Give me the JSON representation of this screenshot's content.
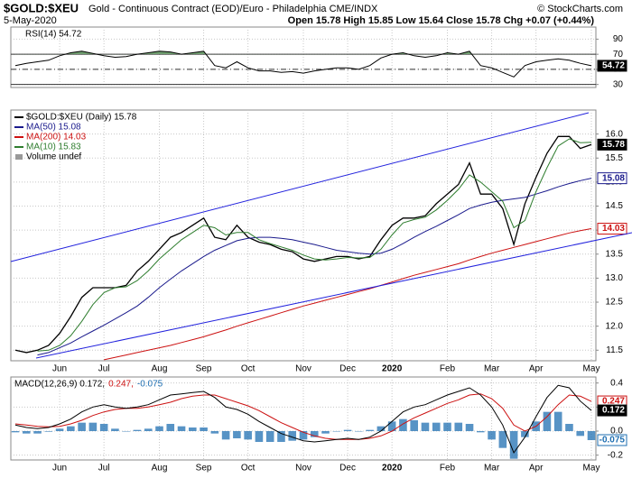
{
  "header": {
    "symbol": "$GOLD:$XEU",
    "description": "Gold - Continuous Contract (EOD)/Euro - Philadelphia CME/INDX",
    "copyright": "© StockCharts.com",
    "date": "5-May-2020",
    "quote": "Open 15.78 High 15.85 Low 15.64 Close 15.78 Chg +0.07 (+0.44%)"
  },
  "chart_data": [
    {
      "type": "line",
      "title": "RSI(14) 54.72",
      "ylim": [
        26,
        106
      ],
      "yticks": [
        30,
        50,
        70,
        90
      ],
      "levels": [
        70,
        50,
        30
      ],
      "grid": true,
      "overbought_fill": "#6f9e6f",
      "series": [
        {
          "name": "RSI(14)",
          "color": "#000000",
          "box": true,
          "values": [
            55,
            58,
            60,
            62,
            68,
            72,
            74,
            71,
            68,
            66,
            67,
            70,
            72,
            74,
            73,
            70,
            72,
            74,
            55,
            52,
            60,
            52,
            48,
            48,
            46,
            47,
            45,
            48,
            50,
            52,
            52,
            50,
            55,
            65,
            70,
            72,
            68,
            66,
            68,
            72,
            70,
            74,
            55,
            52,
            46,
            40,
            55,
            60,
            62,
            64,
            62,
            58,
            54.72
          ]
        }
      ]
    },
    {
      "type": "line",
      "categories": [
        null,
        null,
        null,
        null,
        "Jun",
        null,
        null,
        null,
        "Jul",
        null,
        null,
        null,
        null,
        "Aug",
        null,
        null,
        null,
        "Sep",
        null,
        null,
        null,
        "Oct",
        null,
        null,
        null,
        null,
        "Nov",
        null,
        null,
        null,
        "Dec",
        null,
        null,
        null,
        "2020",
        null,
        null,
        null,
        null,
        "Feb",
        null,
        null,
        null,
        "Mar",
        null,
        null,
        null,
        "Apr",
        null,
        null,
        null,
        null,
        "May"
      ],
      "ylim": [
        11.28,
        16.5
      ],
      "yticks": [
        11.5,
        {
          "value": 12,
          "label": "12.0"
        },
        12.5,
        {
          "value": 13,
          "label": "13.0"
        },
        13.5,
        {
          "value": 14,
          "label": "14.0"
        },
        14.5,
        {
          "value": 15,
          "label": "15.0"
        },
        15.5,
        {
          "value": 16,
          "label": "16.0"
        }
      ],
      "grid": true,
      "volume_label": "Volume undef",
      "series": [
        {
          "name": "$GOLD:$XEU (Daily) 15.78",
          "color": "#000000",
          "box": true,
          "values": [
            11.5,
            11.45,
            11.5,
            11.6,
            11.85,
            12.2,
            12.6,
            12.8,
            12.8,
            12.8,
            12.85,
            13.15,
            13.35,
            13.6,
            13.85,
            13.95,
            14.1,
            14.25,
            13.85,
            13.8,
            14.1,
            13.85,
            13.75,
            13.7,
            13.6,
            13.55,
            13.4,
            13.35,
            13.4,
            13.45,
            13.45,
            13.4,
            13.45,
            13.8,
            14.1,
            14.25,
            14.25,
            14.3,
            14.55,
            14.75,
            14.95,
            15.4,
            14.75,
            14.75,
            14.45,
            13.7,
            14.55,
            15.1,
            15.6,
            15.95,
            15.95,
            15.7,
            15.78
          ]
        },
        {
          "name": "MA(50) 15.08",
          "color": "#1a1a8c",
          "box": true,
          "values": [
            null,
            null,
            11.4,
            11.45,
            11.55,
            11.65,
            11.78,
            11.9,
            12.02,
            12.15,
            12.28,
            12.42,
            12.6,
            12.8,
            12.98,
            13.15,
            13.3,
            13.45,
            13.58,
            13.68,
            13.78,
            13.83,
            13.85,
            13.85,
            13.83,
            13.8,
            13.75,
            13.7,
            13.64,
            13.58,
            13.55,
            13.52,
            13.5,
            13.52,
            13.6,
            13.72,
            13.85,
            13.97,
            14.08,
            14.2,
            14.32,
            14.45,
            14.52,
            14.58,
            14.62,
            14.65,
            14.68,
            14.75,
            14.82,
            14.9,
            14.97,
            15.03,
            15.08
          ]
        },
        {
          "name": "MA(200) 14.03",
          "color": "#cc1111",
          "box": true,
          "values": [
            null,
            null,
            null,
            null,
            null,
            null,
            null,
            null,
            11.3,
            11.35,
            11.4,
            11.45,
            11.5,
            11.55,
            11.6,
            11.66,
            11.72,
            11.78,
            11.85,
            11.92,
            12.0,
            12.07,
            12.14,
            12.21,
            12.28,
            12.35,
            12.42,
            12.48,
            12.54,
            12.6,
            12.66,
            12.72,
            12.78,
            12.85,
            12.92,
            12.99,
            13.06,
            13.12,
            13.18,
            13.24,
            13.3,
            13.38,
            13.45,
            13.52,
            13.58,
            13.64,
            13.7,
            13.76,
            13.82,
            13.88,
            13.94,
            13.99,
            14.03
          ]
        },
        {
          "name": "MA(10) 15.83",
          "color": "#2e7d2e",
          "box": false,
          "values": [
            null,
            null,
            11.48,
            11.5,
            11.6,
            11.8,
            12.1,
            12.45,
            12.7,
            12.8,
            12.82,
            12.95,
            13.15,
            13.4,
            13.6,
            13.8,
            13.95,
            14.1,
            14.05,
            13.9,
            13.95,
            13.95,
            13.8,
            13.72,
            13.65,
            13.58,
            13.48,
            13.4,
            13.38,
            13.4,
            13.43,
            13.42,
            13.43,
            13.6,
            13.9,
            14.15,
            14.22,
            14.27,
            14.42,
            14.62,
            14.85,
            15.15,
            15.0,
            14.8,
            14.6,
            14.05,
            14.2,
            14.8,
            15.3,
            15.75,
            15.9,
            15.82,
            15.83
          ]
        }
      ]
    },
    {
      "type": "line",
      "title_parts": [
        {
          "text": "MACD(12,26,9) 0.172,",
          "color": "#000000"
        },
        {
          "text": "0.247,",
          "color": "#cc1111"
        },
        {
          "text": "-0.075",
          "color": "#1f6fb2"
        }
      ],
      "ylim": [
        -0.24,
        0.45
      ],
      "yticks": [
        -0.2,
        {
          "value": 0,
          "label": "0.0"
        },
        0.2,
        0.4
      ],
      "grid": true,
      "series": [
        {
          "name": "Histogram",
          "kind": "bar",
          "color": "#1f6fb2",
          "box": true,
          "values": [
            -0.01,
            -0.02,
            -0.02,
            -0.005,
            0.02,
            0.04,
            0.07,
            0.07,
            0.06,
            0.02,
            0,
            0.01,
            0.02,
            0.04,
            0.06,
            0.04,
            0.03,
            0.03,
            -0.02,
            -0.07,
            -0.06,
            -0.07,
            -0.09,
            -0.09,
            -0.09,
            -0.08,
            -0.07,
            -0.05,
            -0.02,
            0,
            0.01,
            0,
            0.01,
            0.04,
            0.08,
            0.1,
            0.09,
            0.07,
            0.07,
            0.07,
            0.07,
            0.06,
            -0.01,
            -0.07,
            -0.14,
            -0.23,
            -0.05,
            0.08,
            0.16,
            0.16,
            0.06,
            -0.04,
            -0.075
          ]
        },
        {
          "name": "Signal",
          "color": "#cc1111",
          "box": true,
          "values": [
            0.06,
            0.05,
            0.04,
            0.035,
            0.04,
            0.06,
            0.09,
            0.13,
            0.16,
            0.18,
            0.19,
            0.19,
            0.2,
            0.22,
            0.24,
            0.27,
            0.29,
            0.3,
            0.3,
            0.27,
            0.24,
            0.21,
            0.17,
            0.12,
            0.07,
            0.03,
            -0.01,
            -0.04,
            -0.06,
            -0.07,
            -0.07,
            -0.07,
            -0.06,
            -0.04,
            0,
            0.06,
            0.11,
            0.15,
            0.19,
            0.23,
            0.26,
            0.3,
            0.31,
            0.27,
            0.19,
            0.05,
            0,
            0.04,
            0.12,
            0.22,
            0.3,
            0.29,
            0.247
          ]
        },
        {
          "name": "MACD",
          "color": "#000000",
          "box": true,
          "values": [
            0.05,
            0.03,
            0.02,
            0.03,
            0.06,
            0.1,
            0.16,
            0.2,
            0.22,
            0.2,
            0.19,
            0.2,
            0.22,
            0.26,
            0.3,
            0.31,
            0.32,
            0.33,
            0.28,
            0.2,
            0.18,
            0.14,
            0.08,
            0.03,
            -0.02,
            -0.05,
            -0.08,
            -0.09,
            -0.08,
            -0.07,
            -0.06,
            -0.07,
            -0.05,
            0,
            0.08,
            0.16,
            0.2,
            0.22,
            0.26,
            0.3,
            0.33,
            0.36,
            0.3,
            0.2,
            0.05,
            -0.18,
            -0.05,
            0.12,
            0.28,
            0.38,
            0.36,
            0.25,
            0.172
          ]
        }
      ]
    }
  ]
}
